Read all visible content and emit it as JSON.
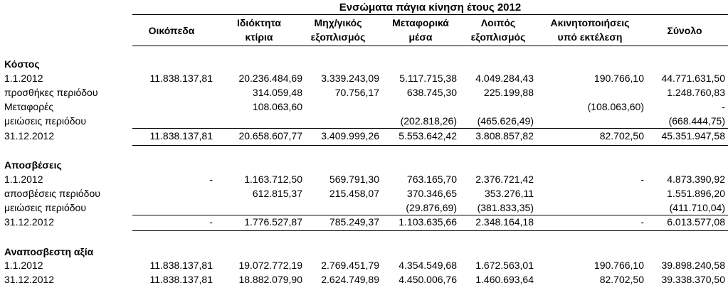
{
  "title": "Ενσώματα πάγια κίνηση έτους 2012",
  "columns": [
    {
      "l1": "Οικόπεδα",
      "l2": ""
    },
    {
      "l1": "Ιδιόκτητα",
      "l2": "κτίρια"
    },
    {
      "l1": "Μηχ/γικός",
      "l2": "εξοπλισμός"
    },
    {
      "l1": "Μεταφορικά",
      "l2": "μέσα"
    },
    {
      "l1": "Λοιπός",
      "l2": "εξοπλισμός"
    },
    {
      "l1": "Ακινητοποιήσεις",
      "l2": "υπό εκτέλεση"
    },
    {
      "l1": "Σύνολο",
      "l2": ""
    }
  ],
  "sections": {
    "kostos": {
      "heading": "Κόστος",
      "rows": [
        {
          "label": "1.1.2012",
          "v": [
            "11.838.137,81",
            "20.236.484,69",
            "3.339.243,09",
            "5.117.715,38",
            "4.049.284,43",
            "190.766,10",
            "44.771.631,50"
          ]
        },
        {
          "label": "προσθήκες περιόδου",
          "v": [
            "",
            "314.059,48",
            "70.756,17",
            "638.745,30",
            "225.199,88",
            "",
            "1.248.760,83"
          ]
        },
        {
          "label": "Μεταφορές",
          "v": [
            "",
            "108.063,60",
            "",
            "",
            "",
            "(108.063,60)",
            "-"
          ]
        },
        {
          "label": "μειώσεις περιόδου",
          "v": [
            "",
            "",
            "",
            "(202.818,26)",
            "(465.626,49)",
            "",
            "(668.444,75)"
          ]
        },
        {
          "label": "31.12.2012",
          "v": [
            "11.838.137,81",
            "20.658.607,77",
            "3.409.999,26",
            "5.553.642,42",
            "3.808.857,82",
            "82.702,50",
            "45.351.947,58"
          ]
        }
      ]
    },
    "apos": {
      "heading": "Αποσβέσεις",
      "rows": [
        {
          "label": "1.1.2012",
          "v": [
            "-",
            "1.163.712,50",
            "569.791,30",
            "763.165,70",
            "2.376.721,42",
            "-",
            "4.873.390,92"
          ]
        },
        {
          "label": "αποσβέσεις περιόδου",
          "v": [
            "",
            "612.815,37",
            "215.458,07",
            "370.346,65",
            "353.276,11",
            "",
            "1.551.896,20"
          ]
        },
        {
          "label": "μειώσεις περιόδου",
          "v": [
            "",
            "",
            "",
            "(29.876,69)",
            "(381.833,35)",
            "",
            "(411.710,04)"
          ]
        },
        {
          "label": "31.12.2012",
          "v": [
            "-",
            "1.776.527,87",
            "785.249,37",
            "1.103.635,66",
            "2.348.164,18",
            "-",
            "6.013.577,08"
          ]
        }
      ]
    },
    "anap": {
      "heading": "Αναποσβεστη αξία",
      "rows": [
        {
          "label": "1.1.2012",
          "v": [
            "11.838.137,81",
            "19.072.772,19",
            "2.769.451,79",
            "4.354.549,68",
            "1.672.563,01",
            "190.766,10",
            "39.898.240,58"
          ]
        },
        {
          "label": "31.12.2012",
          "v": [
            "11.838.137,81",
            "18.882.079,90",
            "2.624.749,89",
            "4.450.006,76",
            "1.460.693,64",
            "82.702,50",
            "39.338.370,50"
          ]
        }
      ]
    }
  }
}
